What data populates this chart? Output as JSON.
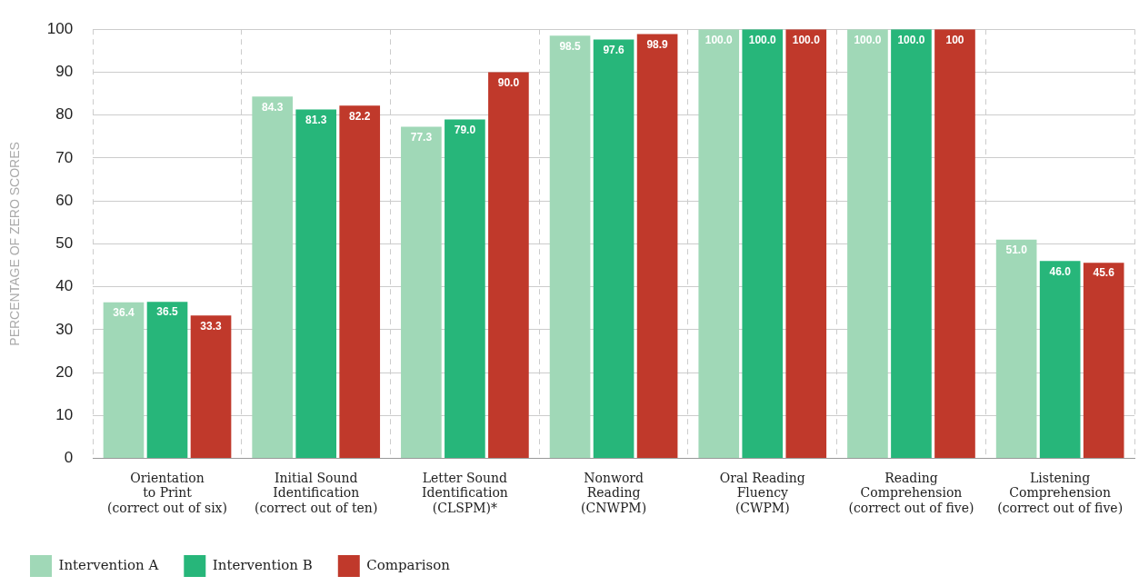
{
  "chart_data": {
    "type": "bar",
    "ylabel": "PERCENTAGE OF ZERO SCORES",
    "categories": [
      "Orientation\nto Print\n(correct out of six)",
      "Initial Sound\nIdentification\n(correct out of ten)",
      "Letter Sound\nIdentification\n(CLSPM)*",
      "Nonword\nReading\n(CNWPM)",
      "Oral Reading\nFluency\n(CWPM)",
      "Reading\nComprehension\n(correct out of five)",
      "Listening\nComprehension\n(correct out of five)"
    ],
    "series": [
      {
        "name": "Intervention A",
        "color": "#a0d8b7",
        "values": [
          36.4,
          84.3,
          77.3,
          98.5,
          100.0,
          100.0,
          51.0
        ],
        "value_labels": [
          "36.4",
          "84.3",
          "77.3",
          "98.5",
          "100.0",
          "100.0",
          "51.0"
        ]
      },
      {
        "name": "Intervention B",
        "color": "#27b67a",
        "values": [
          36.5,
          81.3,
          79.0,
          97.6,
          100.0,
          100.0,
          46.0
        ],
        "value_labels": [
          "36.5",
          "81.3",
          "79.0",
          "97.6",
          "100.0",
          "100.0",
          "46.0"
        ]
      },
      {
        "name": "Comparison",
        "color": "#c0392b",
        "values": [
          33.3,
          82.2,
          90.0,
          98.9,
          100.0,
          100,
          45.6
        ],
        "value_labels": [
          "33.3",
          "82.2",
          "90.0",
          "98.9",
          "100.0",
          "100",
          "45.6"
        ]
      }
    ],
    "ylim": [
      0,
      100
    ],
    "yticks": [
      0,
      10,
      20,
      30,
      40,
      50,
      60,
      70,
      80,
      90,
      100
    ],
    "grid": true,
    "legend": "bottom left"
  }
}
